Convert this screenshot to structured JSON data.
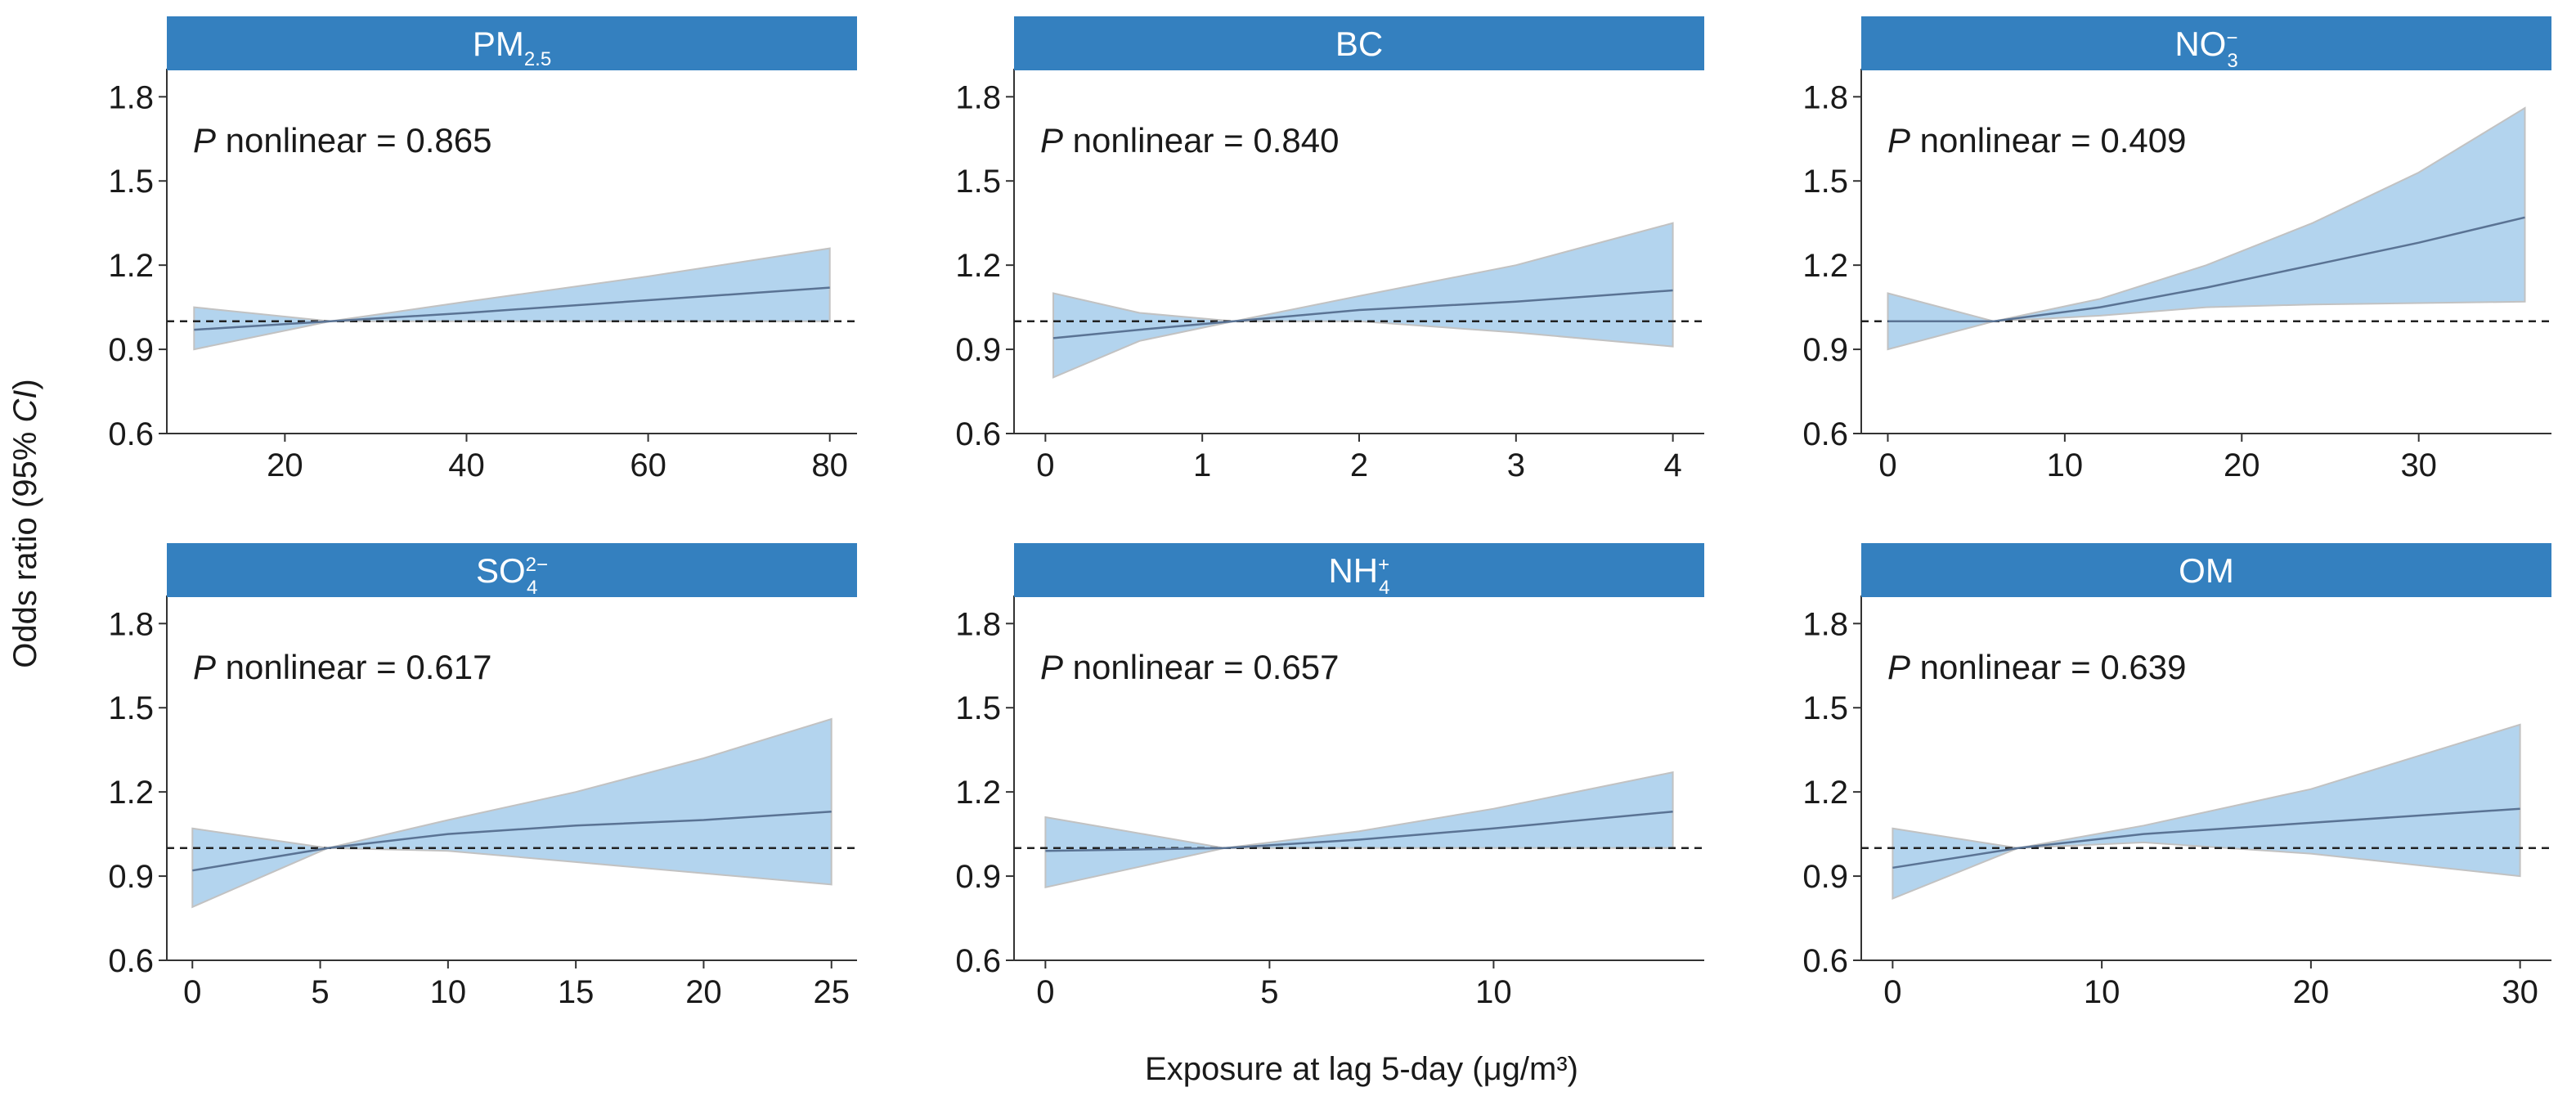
{
  "figure": {
    "ylabel_prefix": "Odds ratio (95% ",
    "ylabel_italic": "CI",
    "ylabel_suffix": ")",
    "xlabel": "Exposure at lag 5-day (μg/m³)"
  },
  "colors": {
    "strip": "#3480bf",
    "ci_band": "#b3d4ee",
    "ci_edge": "#c2c2c2",
    "line": "#5a7394",
    "reference": "#222222"
  },
  "chart_data": [
    {
      "type": "area",
      "panel": "PM2.5",
      "title_main": "PM",
      "title_sub": "2.5",
      "title_sup": "",
      "annotation_p": "P",
      "annotation_rest": " nonlinear = 0.865",
      "xlim": [
        7,
        83
      ],
      "ylim": [
        0.6,
        1.9
      ],
      "xticks": [
        "20",
        "40",
        "60",
        "80"
      ],
      "xtick_values": [
        20,
        40,
        60,
        80
      ],
      "yticks": [
        "0.6",
        "0.9",
        "1.2",
        "1.5",
        "1.8"
      ],
      "ytick_values": [
        0.6,
        0.9,
        1.2,
        1.5,
        1.8
      ],
      "reference": 1.0,
      "x": [
        10,
        25,
        40,
        60,
        80
      ],
      "estimate": [
        0.97,
        1.0,
        1.03,
        1.075,
        1.12
      ],
      "lower": [
        0.9,
        1.0,
        1.0,
        1.0,
        1.0
      ],
      "upper": [
        1.05,
        1.0,
        1.07,
        1.16,
        1.26
      ]
    },
    {
      "type": "area",
      "panel": "BC",
      "title_main": "BC",
      "title_sub": "",
      "title_sup": "",
      "annotation_p": "P",
      "annotation_rest": " nonlinear = 0.840",
      "xlim": [
        -0.2,
        4.2
      ],
      "ylim": [
        0.6,
        1.9
      ],
      "xticks": [
        "0",
        "1",
        "2",
        "3",
        "4"
      ],
      "xtick_values": [
        0,
        1,
        2,
        3,
        4
      ],
      "yticks": [
        "0.6",
        "0.9",
        "1.2",
        "1.5",
        "1.8"
      ],
      "ytick_values": [
        0.6,
        0.9,
        1.2,
        1.5,
        1.8
      ],
      "reference": 1.0,
      "x": [
        0.05,
        0.6,
        1.2,
        2,
        3,
        4
      ],
      "estimate": [
        0.94,
        0.97,
        1.0,
        1.04,
        1.07,
        1.11
      ],
      "lower": [
        0.8,
        0.93,
        1.0,
        1.0,
        0.96,
        0.91
      ],
      "upper": [
        1.1,
        1.03,
        1.0,
        1.09,
        1.2,
        1.35
      ]
    },
    {
      "type": "area",
      "panel": "NO3-",
      "title_main": "NO",
      "title_sub": "3",
      "title_sup": "−",
      "annotation_p": "P",
      "annotation_rest": " nonlinear = 0.409",
      "xlim": [
        -1.5,
        37.5
      ],
      "ylim": [
        0.6,
        1.9
      ],
      "xticks": [
        "0",
        "10",
        "20",
        "30"
      ],
      "xtick_values": [
        0,
        10,
        20,
        30
      ],
      "yticks": [
        "0.6",
        "0.9",
        "1.2",
        "1.5",
        "1.8"
      ],
      "ytick_values": [
        0.6,
        0.9,
        1.2,
        1.5,
        1.8
      ],
      "reference": 1.0,
      "x": [
        0,
        6,
        12,
        18,
        24,
        30,
        36
      ],
      "estimate": [
        1.0,
        1.0,
        1.05,
        1.12,
        1.2,
        1.28,
        1.37
      ],
      "lower": [
        0.9,
        1.0,
        1.02,
        1.05,
        1.06,
        1.065,
        1.07
      ],
      "upper": [
        1.1,
        1.0,
        1.08,
        1.2,
        1.35,
        1.53,
        1.76
      ]
    },
    {
      "type": "area",
      "panel": "SO42-",
      "title_main": "SO",
      "title_sub": "4",
      "title_sup": "2−",
      "annotation_p": "P",
      "annotation_rest": " nonlinear = 0.617",
      "xlim": [
        -1,
        26
      ],
      "ylim": [
        0.6,
        1.9
      ],
      "xticks": [
        "0",
        "5",
        "10",
        "15",
        "20",
        "25"
      ],
      "xtick_values": [
        0,
        5,
        10,
        15,
        20,
        25
      ],
      "yticks": [
        "0.6",
        "0.9",
        "1.2",
        "1.5",
        "1.8"
      ],
      "ytick_values": [
        0.6,
        0.9,
        1.2,
        1.5,
        1.8
      ],
      "reference": 1.0,
      "x": [
        0,
        5.3,
        10,
        15,
        20,
        25
      ],
      "estimate": [
        0.92,
        1.0,
        1.05,
        1.08,
        1.1,
        1.13
      ],
      "lower": [
        0.79,
        1.0,
        0.99,
        0.95,
        0.91,
        0.87
      ],
      "upper": [
        1.07,
        1.0,
        1.1,
        1.2,
        1.32,
        1.46
      ]
    },
    {
      "type": "area",
      "panel": "NH4+",
      "title_main": "NH",
      "title_sub": "4",
      "title_sup": "+",
      "annotation_p": "P",
      "annotation_rest": " nonlinear = 0.657",
      "xlim": [
        -0.7,
        14.7
      ],
      "ylim": [
        0.6,
        1.9
      ],
      "xticks": [
        "0",
        "5",
        "10"
      ],
      "xtick_values": [
        0,
        5,
        10
      ],
      "yticks": [
        "0.6",
        "0.9",
        "1.2",
        "1.5",
        "1.8"
      ],
      "ytick_values": [
        0.6,
        0.9,
        1.2,
        1.5,
        1.8
      ],
      "reference": 1.0,
      "x": [
        0,
        4,
        7,
        10,
        14
      ],
      "estimate": [
        0.99,
        1.0,
        1.03,
        1.07,
        1.13
      ],
      "lower": [
        0.86,
        1.0,
        1.0,
        1.0,
        1.0
      ],
      "upper": [
        1.11,
        1.0,
        1.06,
        1.14,
        1.27
      ]
    },
    {
      "type": "area",
      "panel": "OM",
      "title_main": "OM",
      "title_sub": "",
      "title_sup": "",
      "annotation_p": "P",
      "annotation_rest": " nonlinear = 0.639",
      "xlim": [
        -1.5,
        31.5
      ],
      "ylim": [
        0.6,
        1.9
      ],
      "xticks": [
        "0",
        "10",
        "20",
        "30"
      ],
      "xtick_values": [
        0,
        10,
        20,
        30
      ],
      "yticks": [
        "0.6",
        "0.9",
        "1.2",
        "1.5",
        "1.8"
      ],
      "ytick_values": [
        0.6,
        0.9,
        1.2,
        1.5,
        1.8
      ],
      "reference": 1.0,
      "x": [
        0,
        6,
        12,
        20,
        30
      ],
      "estimate": [
        0.93,
        1.0,
        1.05,
        1.09,
        1.14
      ],
      "lower": [
        0.82,
        1.0,
        1.02,
        0.98,
        0.9
      ],
      "upper": [
        1.07,
        1.0,
        1.08,
        1.21,
        1.44
      ]
    }
  ]
}
